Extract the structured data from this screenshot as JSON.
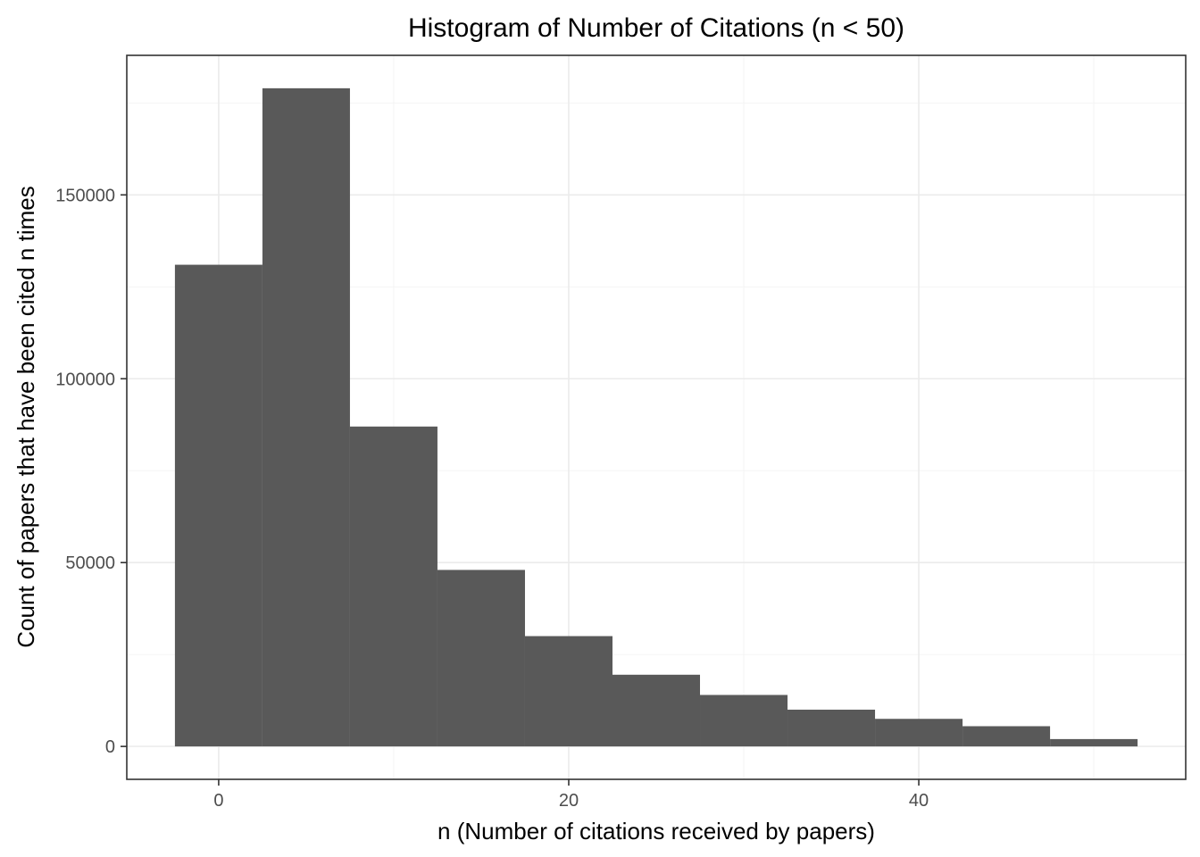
{
  "chart_data": {
    "type": "bar",
    "title": "Histogram of Number of Citations (n < 50)",
    "xlabel": "n (Number of citations received by papers)",
    "ylabel": "Count of papers that have been cited n times",
    "xlim": [
      -5.25,
      55.25
    ],
    "ylim": [
      -8950,
      187950
    ],
    "x_ticks": [
      0,
      20,
      40
    ],
    "x_tick_labels": [
      "0",
      "20",
      "40"
    ],
    "y_ticks": [
      0,
      50000,
      100000,
      150000
    ],
    "y_tick_labels": [
      "0",
      "50000",
      "100000",
      "150000"
    ],
    "grid": true,
    "bin_width": 5,
    "bins": [
      {
        "start": -2.5,
        "end": 2.5,
        "count": 131000
      },
      {
        "start": 2.5,
        "end": 7.5,
        "count": 179000
      },
      {
        "start": 7.5,
        "end": 12.5,
        "count": 87000
      },
      {
        "start": 12.5,
        "end": 17.5,
        "count": 48000
      },
      {
        "start": 17.5,
        "end": 22.5,
        "count": 30000
      },
      {
        "start": 22.5,
        "end": 27.5,
        "count": 19500
      },
      {
        "start": 27.5,
        "end": 32.5,
        "count": 14000
      },
      {
        "start": 32.5,
        "end": 37.5,
        "count": 10000
      },
      {
        "start": 37.5,
        "end": 42.5,
        "count": 7500
      },
      {
        "start": 42.5,
        "end": 47.5,
        "count": 5500
      },
      {
        "start": 47.5,
        "end": 52.5,
        "count": 2000
      }
    ],
    "bar_color": "#595959",
    "panel_border_color": "#333333",
    "grid_color": "#ebebeb"
  }
}
